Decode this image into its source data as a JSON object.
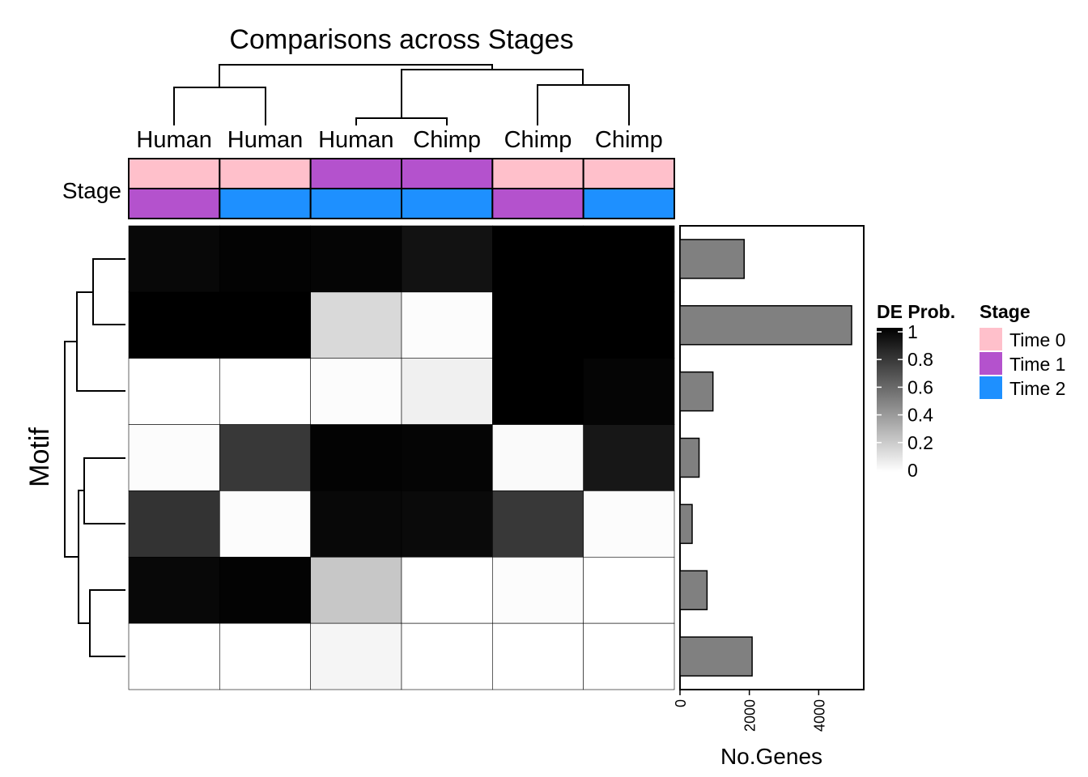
{
  "chart_data": {
    "type": "heatmap",
    "title": "Comparisons across Stages",
    "columns": [
      "Human",
      "Human",
      "Human",
      "Chimp",
      "Chimp",
      "Chimp"
    ],
    "annotation": {
      "label": "Stage",
      "top_row": [
        "Time 0",
        "Time 0",
        "Time 1",
        "Time 1",
        "Time 0",
        "Time 0"
      ],
      "bottom_row": [
        "Time 1",
        "Time 2",
        "Time 2",
        "Time 2",
        "Time 1",
        "Time 2"
      ]
    },
    "row_axis_label": "Motif",
    "values": [
      [
        0.97,
        0.99,
        0.98,
        0.93,
        1.0,
        1.0
      ],
      [
        1.0,
        1.0,
        0.15,
        0.01,
        1.0,
        1.0
      ],
      [
        0.0,
        0.0,
        0.01,
        0.06,
        1.0,
        0.98
      ],
      [
        0.01,
        0.78,
        0.99,
        0.98,
        0.02,
        0.91
      ],
      [
        0.8,
        0.01,
        0.97,
        0.96,
        0.78,
        0.01
      ],
      [
        0.97,
        0.99,
        0.22,
        0.0,
        0.01,
        0.0
      ],
      [
        0.0,
        0.0,
        0.04,
        0.0,
        0.0,
        0.0
      ]
    ],
    "bar_chart": {
      "type": "bar",
      "orientation": "horizontal",
      "xlabel": "No.Genes",
      "values": [
        1850,
        4950,
        950,
        550,
        350,
        780,
        2080
      ],
      "xlim": [
        0,
        5300
      ],
      "ticks": [
        "0",
        "2000",
        "4000"
      ],
      "tick_values": [
        0,
        2000,
        4000
      ],
      "fill": "#808080"
    },
    "legend_de": {
      "title": "DE Prob.",
      "labels": [
        "1",
        "0.8",
        "0.6",
        "0.4",
        "0.2",
        "0"
      ],
      "values": [
        1,
        0.8,
        0.6,
        0.4,
        0.2,
        0
      ]
    },
    "legend_stage": {
      "title": "Stage",
      "entries": [
        {
          "label": "Time 0",
          "color": "#FFC0CB"
        },
        {
          "label": "Time 1",
          "color": "#B452CD"
        },
        {
          "label": "Time 2",
          "color": "#1E90FF"
        }
      ]
    }
  }
}
